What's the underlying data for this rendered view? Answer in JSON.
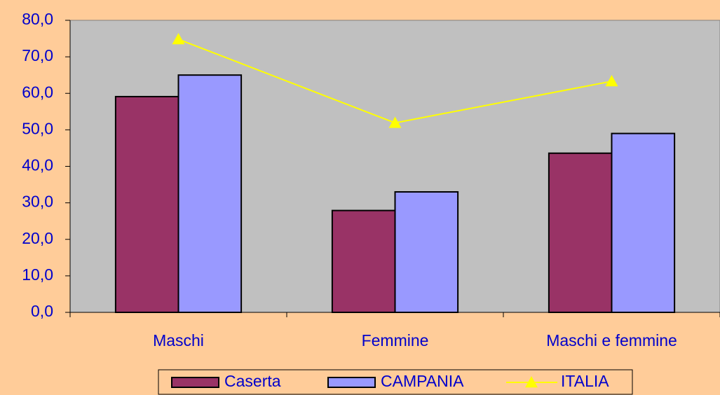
{
  "chart_data": {
    "type": "bar",
    "categories": [
      "Maschi",
      "Femmine",
      "Maschi e femmine"
    ],
    "series": [
      {
        "name": "Caserta",
        "type": "bar",
        "color": "#993366",
        "values": [
          59.1,
          27.9,
          43.6
        ]
      },
      {
        "name": "CAMPANIA",
        "type": "bar",
        "color": "#9999FF",
        "values": [
          65.0,
          33.0,
          49.0
        ]
      },
      {
        "name": "ITALIA",
        "type": "line",
        "color": "#FFFF00",
        "values": [
          74.8,
          51.9,
          63.3
        ]
      }
    ],
    "ylim": [
      0,
      80
    ],
    "yticks": [
      {
        "value": 0,
        "label": "0,0"
      },
      {
        "value": 10,
        "label": "10,0"
      },
      {
        "value": 20,
        "label": "20,0"
      },
      {
        "value": 30,
        "label": "30,0"
      },
      {
        "value": 40,
        "label": "40,0"
      },
      {
        "value": 50,
        "label": "50,0"
      },
      {
        "value": 60,
        "label": "60,0"
      },
      {
        "value": 70,
        "label": "70,0"
      },
      {
        "value": 80,
        "label": "80,0"
      }
    ],
    "grid": false,
    "legend": "bottom"
  }
}
